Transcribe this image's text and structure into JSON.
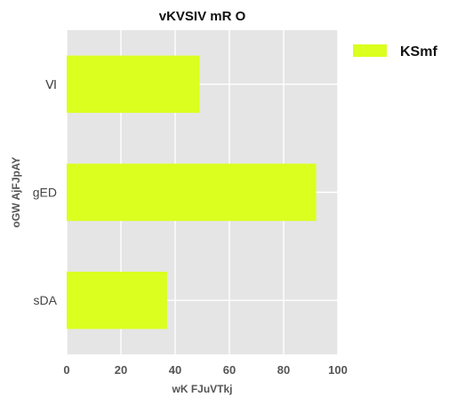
{
  "chart_data": {
    "type": "bar",
    "orientation": "horizontal",
    "title": "vKVSIV   mR  O",
    "xlabel": "wK FJuVTkj",
    "ylabel": "oGW AjFJpAY",
    "categories": [
      "Ⅵ",
      "gED",
      "sDA"
    ],
    "series": [
      {
        "name": "KSmf",
        "values": [
          49,
          92,
          37
        ],
        "color": "#dbff1e"
      }
    ],
    "xlim": [
      0,
      100
    ],
    "xticks": [
      0,
      20,
      40,
      60,
      80,
      100
    ],
    "grid": true,
    "legend": "top-right",
    "background": "#e5e5e5",
    "grid_color": "#ffffff"
  }
}
